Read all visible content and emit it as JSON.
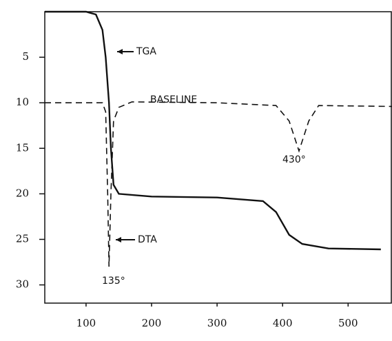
{
  "chart_data": {
    "type": "line",
    "xlim": [
      37,
      567
    ],
    "ylim": [
      0,
      32
    ],
    "y_inverted": true,
    "xticks": [
      100,
      200,
      300,
      400,
      500
    ],
    "yticks": [
      5,
      10,
      15,
      20,
      25,
      30
    ],
    "series": [
      {
        "name": "TGA",
        "color": "#111111",
        "style": "solid",
        "x": [
          37,
          100,
          115,
          125,
          130,
          135,
          138,
          142,
          150,
          200,
          300,
          370,
          390,
          410,
          430,
          470,
          550
        ],
        "values": [
          0,
          0,
          0.3,
          2,
          5,
          10,
          15,
          19,
          20,
          20.3,
          20.4,
          20.8,
          22,
          24.5,
          25.5,
          26,
          26.1
        ]
      },
      {
        "name": "DTA",
        "color": "#111111",
        "style": "dashed",
        "x": [
          37,
          125,
          130,
          133,
          135,
          138,
          142,
          150,
          170,
          300,
          390,
          410,
          425,
          440,
          455,
          567
        ],
        "values": [
          10,
          10,
          11,
          20,
          28,
          20,
          12,
          10.5,
          9.9,
          10,
          10.3,
          12,
          15.3,
          12,
          10.3,
          10.4
        ]
      }
    ],
    "annotations": [
      "BASELINE",
      "135°",
      "430°"
    ]
  }
}
